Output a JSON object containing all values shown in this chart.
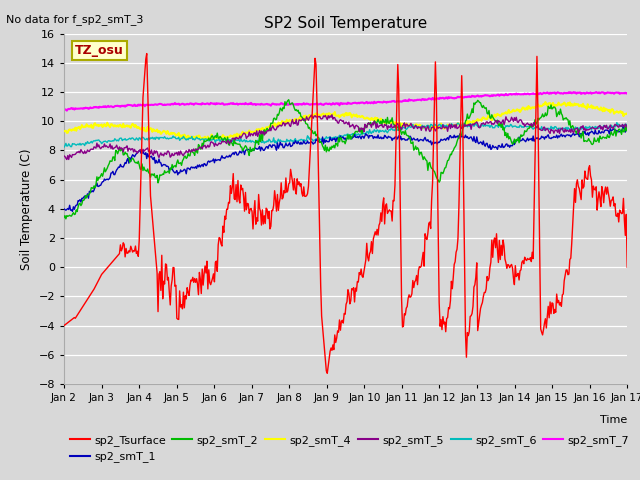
{
  "title": "SP2 Soil Temperature",
  "subtitle": "No data for f_sp2_smT_3",
  "ylabel": "Soil Temperature (C)",
  "xlabel": "Time",
  "tz_label": "TZ_osu",
  "ylim": [
    -8,
    16
  ],
  "yticks": [
    -8,
    -6,
    -4,
    -2,
    0,
    2,
    4,
    6,
    8,
    10,
    12,
    14,
    16
  ],
  "xtick_labels": [
    "Jan 2",
    "Jan 3",
    "Jan 4",
    "Jan 5",
    "Jan 6",
    "Jan 7",
    "Jan 8",
    "Jan 9",
    "Jan 10",
    "Jan 11",
    "Jan 12",
    "Jan 13",
    "Jan 14",
    "Jan 15",
    "Jan 16",
    "Jan 17"
  ],
  "bg_color": "#d8d8d8",
  "plot_bg_color": "#d8d8d8",
  "grid_color": "#ffffff",
  "series_colors": {
    "sp2_Tsurface": "#ff0000",
    "sp2_smT_1": "#0000bb",
    "sp2_smT_2": "#00bb00",
    "sp2_smT_4": "#ffff00",
    "sp2_smT_5": "#880088",
    "sp2_smT_6": "#00bbbb",
    "sp2_smT_7": "#ff00ff"
  }
}
